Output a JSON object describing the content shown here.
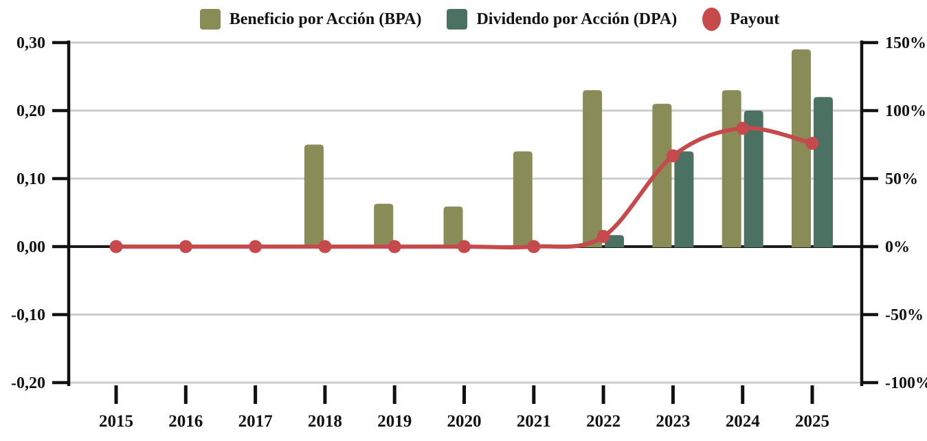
{
  "chart_data": {
    "type": "bar+line",
    "title": "",
    "categories": [
      "2015",
      "2016",
      "2017",
      "2018",
      "2019",
      "2020",
      "2021",
      "2022",
      "2023",
      "2024",
      "2025"
    ],
    "series": [
      {
        "name": "Beneficio por Acción (BPA)",
        "type": "bar",
        "axis": "left",
        "color": "#8A8C58",
        "values": [
          0,
          0,
          0,
          0.15,
          0.063,
          0.059,
          0.14,
          0.23,
          0.21,
          0.23,
          0.29
        ]
      },
      {
        "name": "Dividendo por Acción (DPA)",
        "type": "bar",
        "axis": "left",
        "color": "#4B7163",
        "values": [
          0,
          0,
          0,
          0,
          0,
          0,
          0,
          0.017,
          0.14,
          0.2,
          0.22
        ]
      },
      {
        "name": "Payout",
        "type": "line",
        "axis": "right",
        "unit": "%",
        "color": "#C6494B",
        "values": [
          0,
          0,
          0,
          0,
          0,
          0,
          0,
          7.4,
          66.7,
          87,
          75.9
        ]
      }
    ],
    "left_axis": {
      "ticks": [
        "0,30",
        "0,20",
        "0,10",
        "0,00",
        "-0,10",
        "-0,20"
      ],
      "tick_values": [
        0.3,
        0.2,
        0.1,
        0,
        -0.1,
        -0.2
      ],
      "range": [
        -0.2,
        0.3
      ]
    },
    "right_axis": {
      "ticks": [
        "150%",
        "100%",
        "50%",
        "0%",
        "-50%",
        "-100%"
      ],
      "tick_values": [
        150,
        100,
        50,
        0,
        -50,
        -100
      ],
      "range": [
        -100,
        150
      ]
    },
    "grid": true,
    "legend_position": "top"
  },
  "colors": {
    "background": "#FFFFFF",
    "gridline": "#CCCCCC",
    "zero_line": "#1A1A1A",
    "axis": "#111111",
    "text": "#111111"
  }
}
